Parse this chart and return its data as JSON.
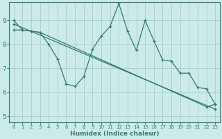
{
  "title": "",
  "xlabel": "Humidex (Indice chaleur)",
  "ylabel": "",
  "background_color": "#cceae7",
  "grid_color": "#aad4d0",
  "line_color": "#2e7d74",
  "xlim": [
    -0.5,
    23.5
  ],
  "ylim": [
    4.75,
    9.75
  ],
  "xticks": [
    0,
    1,
    2,
    3,
    4,
    5,
    6,
    7,
    8,
    9,
    10,
    11,
    12,
    13,
    14,
    15,
    16,
    17,
    18,
    19,
    20,
    21,
    22,
    23
  ],
  "yticks": [
    5,
    6,
    7,
    8,
    9
  ],
  "line1_x": [
    0,
    1,
    2,
    3,
    4,
    5,
    6,
    7,
    8,
    9,
    10,
    11,
    12,
    13,
    14,
    15,
    16,
    17,
    18,
    19,
    20,
    21,
    22,
    23
  ],
  "line1_y": [
    9.0,
    8.6,
    8.55,
    8.5,
    8.0,
    7.4,
    6.35,
    6.25,
    6.65,
    7.8,
    8.35,
    8.75,
    9.7,
    8.55,
    7.75,
    9.0,
    8.15,
    7.35,
    7.3,
    6.8,
    6.8,
    6.2,
    6.15,
    5.5
  ],
  "line2_x": [
    0,
    1,
    2,
    3,
    22,
    23
  ],
  "line2_y": [
    8.6,
    8.6,
    8.55,
    8.5,
    5.4,
    5.5
  ],
  "line3_x": [
    0,
    23
  ],
  "line3_y": [
    8.85,
    5.3
  ],
  "marker": "+"
}
